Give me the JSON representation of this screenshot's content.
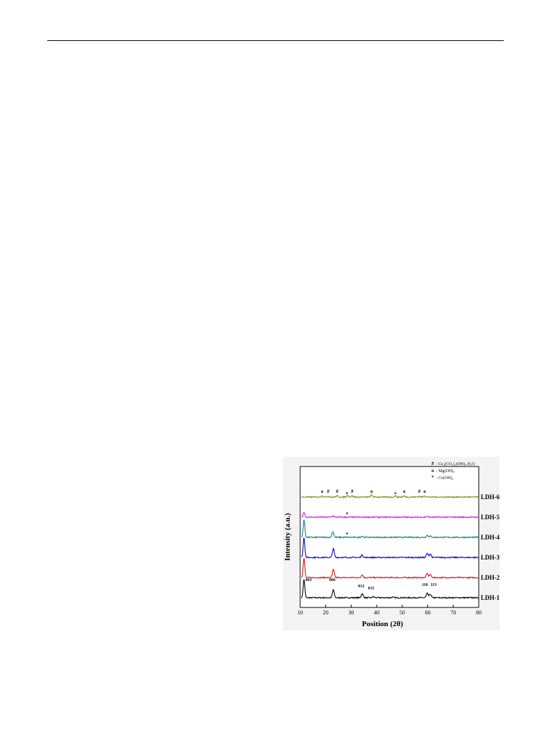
{
  "figure": {
    "chart_data": {
      "type": "line",
      "xlabel": "Position (2θ)",
      "ylabel": "Intensity (a.u.)",
      "xlim": [
        10,
        80
      ],
      "xticks": [
        10,
        20,
        30,
        40,
        50,
        60,
        70,
        80
      ],
      "x_tick_labels": [
        "10",
        "20",
        "30",
        "40",
        "50",
        "60",
        "70",
        "80"
      ],
      "grid": false,
      "legend_position": "top-right",
      "legend": [
        {
          "symbol": "#",
          "label": ": Ce₂(CO₃)₂(OH)₂.H₂O"
        },
        {
          "symbol": "o",
          "label": ": Mg(OH)₂"
        },
        {
          "symbol": "*",
          "label": ": Ce(OH)₄"
        }
      ],
      "series": [
        {
          "name": "LDH-1",
          "color": "#111111",
          "baseline": 0,
          "peaks": [
            [
              11.5,
              4.6
            ],
            [
              23.0,
              2.0
            ],
            [
              34.3,
              1.0
            ],
            [
              38.7,
              0.25
            ],
            [
              46.3,
              0.15
            ],
            [
              59.8,
              1.1
            ],
            [
              61.0,
              0.9
            ]
          ]
        },
        {
          "name": "LDH-2",
          "color": "#e02020",
          "baseline": 1,
          "peaks": [
            [
              11.5,
              5.0
            ],
            [
              23.0,
              2.0
            ],
            [
              34.3,
              0.7
            ],
            [
              59.8,
              1.0
            ],
            [
              61.0,
              0.8
            ]
          ]
        },
        {
          "name": "LDH-3",
          "color": "#1414cc",
          "baseline": 2,
          "peaks": [
            [
              11.5,
              5.0
            ],
            [
              23.0,
              2.2
            ],
            [
              34.3,
              0.6
            ],
            [
              59.8,
              1.0
            ],
            [
              61.0,
              0.9
            ]
          ]
        },
        {
          "name": "LDH-4",
          "color": "#1e8a8a",
          "baseline": 3,
          "peaks": [
            [
              11.5,
              4.4
            ],
            [
              22.8,
              1.4
            ],
            [
              34.3,
              0.3
            ],
            [
              59.8,
              0.5
            ],
            [
              61.0,
              0.3
            ]
          ]
        },
        {
          "name": "LDH-5",
          "color": "#e020e0",
          "baseline": 4,
          "peaks": [
            [
              11.5,
              1.3
            ],
            [
              22.8,
              0.35
            ],
            [
              59.8,
              0.2
            ]
          ]
        },
        {
          "name": "LDH-6",
          "color": "#8f8f20",
          "baseline": 5,
          "peaks": [
            [
              18.6,
              0.3
            ],
            [
              21.0,
              0.2
            ],
            [
              24.5,
              0.3
            ],
            [
              28.6,
              0.45
            ],
            [
              30.4,
              0.3
            ],
            [
              38.0,
              0.55
            ],
            [
              47.3,
              0.3
            ],
            [
              50.8,
              0.25
            ],
            [
              56.7,
              0.2
            ],
            [
              58.8,
              0.3
            ]
          ]
        }
      ],
      "annotations": [
        {
          "text": "003",
          "x": 13.3,
          "series": "LDH-1"
        },
        {
          "text": "006",
          "x": 22.6,
          "series": "LDH-1"
        },
        {
          "text": "012",
          "x": 33.9,
          "series": "LDH-1"
        },
        {
          "text": "015",
          "x": 37.8,
          "series": "LDH-1"
        },
        {
          "text": "110",
          "x": 58.9,
          "series": "LDH-1"
        },
        {
          "text": "113",
          "x": 62.3,
          "series": "LDH-1"
        },
        {
          "text": "o",
          "x": 18.6,
          "series": "LDH-6"
        },
        {
          "text": "#",
          "x": 21.0,
          "series": "LDH-6"
        },
        {
          "text": "#",
          "x": 24.5,
          "series": "LDH-6"
        },
        {
          "text": "*",
          "x": 28.4,
          "series": "LDH-6"
        },
        {
          "text": "#",
          "x": 30.4,
          "series": "LDH-6"
        },
        {
          "text": "o",
          "x": 38.0,
          "series": "LDH-6"
        },
        {
          "text": "*",
          "x": 47.3,
          "series": "LDH-6"
        },
        {
          "text": "o",
          "x": 50.8,
          "series": "LDH-6"
        },
        {
          "text": "#",
          "x": 56.7,
          "series": "LDH-6"
        },
        {
          "text": "o",
          "x": 58.8,
          "series": "LDH-6"
        },
        {
          "text": "*",
          "x": 28.4,
          "series": "LDH-5"
        },
        {
          "text": "*",
          "x": 28.4,
          "series": "LDH-4"
        }
      ]
    }
  }
}
